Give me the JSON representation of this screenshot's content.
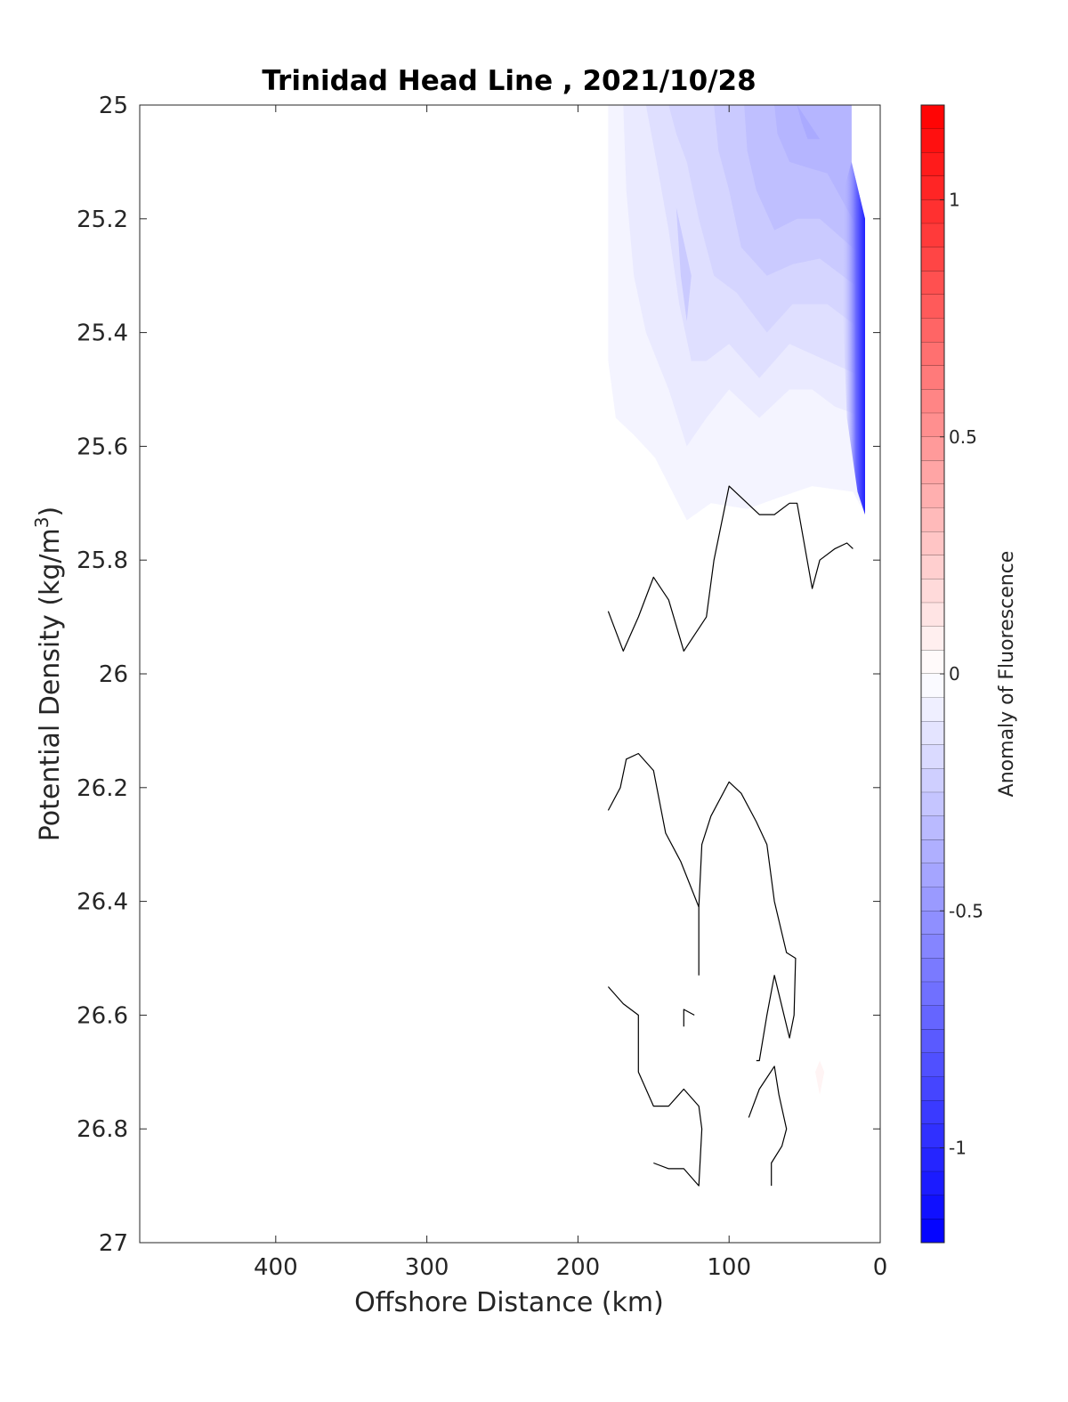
{
  "chart_data": {
    "type": "contour",
    "title": "Trinidad Head Line , 2021/10/28",
    "xlabel": "Offshore Distance (km)",
    "ylabel_main": "Potential Density (kg/m",
    "ylabel_sup": "3",
    "ylabel_close": ")",
    "x_reversed": true,
    "y_reversed": true,
    "xlim": [
      0,
      490
    ],
    "ylim": [
      25,
      27
    ],
    "xticks": [
      400,
      300,
      200,
      100,
      0
    ],
    "yticks": [
      "25",
      "25.2",
      "25.4",
      "25.6",
      "25.8",
      "26",
      "26.2",
      "26.4",
      "26.6",
      "26.8",
      "27"
    ],
    "colorbar": {
      "label": "Anomaly of Fluorescence",
      "range": [
        -1.2,
        1.2
      ],
      "levels": 48,
      "ticks": [
        "-1",
        "-0.5",
        "0",
        "0.5",
        "1"
      ],
      "tick_values": [
        -1,
        -0.5,
        0,
        0.5,
        1
      ],
      "colors": {
        "low": "#0000ff",
        "mid": "#ffffff",
        "high": "#ff0000"
      }
    },
    "filled_regions": [
      {
        "level": -0.05,
        "points": [
          [
            180,
            25
          ],
          [
            19,
            25
          ],
          [
            19,
            25.1
          ],
          [
            10,
            25.2
          ],
          [
            10,
            25.72
          ],
          [
            18,
            25.68
          ],
          [
            45,
            25.67
          ],
          [
            67,
            25.69
          ],
          [
            88,
            25.71
          ],
          [
            112,
            25.7
          ],
          [
            128,
            25.73
          ],
          [
            149,
            25.62
          ],
          [
            163,
            25.58
          ],
          [
            175,
            25.55
          ],
          [
            180,
            25.45
          ]
        ]
      },
      {
        "level": -0.1,
        "points": [
          [
            170,
            25
          ],
          [
            19,
            25
          ],
          [
            19,
            25.1
          ],
          [
            10,
            25.2
          ],
          [
            10,
            25.55
          ],
          [
            30,
            25.53
          ],
          [
            45,
            25.5
          ],
          [
            60,
            25.5
          ],
          [
            80,
            25.55
          ],
          [
            100,
            25.5
          ],
          [
            115,
            25.55
          ],
          [
            128,
            25.6
          ],
          [
            140,
            25.5
          ],
          [
            155,
            25.4
          ],
          [
            163,
            25.3
          ],
          [
            168,
            25.15
          ]
        ]
      },
      {
        "level": -0.15,
        "points": [
          [
            155,
            25
          ],
          [
            19,
            25
          ],
          [
            19,
            25.1
          ],
          [
            10,
            25.2
          ],
          [
            10,
            25.48
          ],
          [
            35,
            25.45
          ],
          [
            60,
            25.42
          ],
          [
            80,
            25.48
          ],
          [
            100,
            25.42
          ],
          [
            115,
            25.45
          ],
          [
            125,
            25.45
          ],
          [
            133,
            25.35
          ],
          [
            140,
            25.22
          ],
          [
            148,
            25.1
          ]
        ]
      },
      {
        "level": -0.2,
        "points": [
          [
            140,
            25
          ],
          [
            19,
            25
          ],
          [
            19,
            25.1
          ],
          [
            10,
            25.2
          ],
          [
            10,
            25.4
          ],
          [
            35,
            25.35
          ],
          [
            58,
            25.35
          ],
          [
            75,
            25.4
          ],
          [
            95,
            25.33
          ],
          [
            110,
            25.3
          ],
          [
            120,
            25.2
          ],
          [
            128,
            25.1
          ],
          [
            135,
            25.05
          ]
        ]
      },
      {
        "level": -0.25,
        "points": [
          [
            135,
            25.18
          ],
          [
            125,
            25.3
          ],
          [
            128,
            25.38
          ],
          [
            132,
            25.3
          ]
        ]
      },
      {
        "level": -0.25,
        "points": [
          [
            110,
            25
          ],
          [
            19,
            25
          ],
          [
            19,
            25.1
          ],
          [
            10,
            25.2
          ],
          [
            10,
            25.33
          ],
          [
            40,
            25.27
          ],
          [
            58,
            25.28
          ],
          [
            75,
            25.3
          ],
          [
            92,
            25.25
          ],
          [
            100,
            25.15
          ],
          [
            107,
            25.08
          ]
        ]
      },
      {
        "level": -0.3,
        "points": [
          [
            90,
            25
          ],
          [
            19,
            25
          ],
          [
            19,
            25.1
          ],
          [
            10,
            25.2
          ],
          [
            10,
            25.27
          ],
          [
            40,
            25.2
          ],
          [
            55,
            25.2
          ],
          [
            70,
            25.22
          ],
          [
            82,
            25.15
          ],
          [
            88,
            25.08
          ]
        ]
      },
      {
        "level": -0.35,
        "points": [
          [
            70,
            25
          ],
          [
            19,
            25
          ],
          [
            19,
            25.1
          ],
          [
            10,
            25.2
          ],
          [
            10,
            25.24
          ],
          [
            35,
            25.12
          ],
          [
            48,
            25.11
          ],
          [
            60,
            25.1
          ],
          [
            68,
            25.05
          ]
        ]
      },
      {
        "level": -0.4,
        "points": [
          [
            55,
            25
          ],
          [
            40,
            25.06
          ],
          [
            48,
            25.06
          ],
          [
            52,
            25.03
          ]
        ]
      }
    ],
    "gradient_region": {
      "points": [
        [
          19,
          25.1
        ],
        [
          10,
          25.2
        ],
        [
          10,
          25.72
        ],
        [
          15,
          25.68
        ],
        [
          22,
          25.55
        ],
        [
          25,
          25.35
        ],
        [
          24,
          25.15
        ]
      ]
    },
    "positive_blob": {
      "level": 0.05,
      "points": [
        [
          40,
          26.68
        ],
        [
          37,
          26.7
        ],
        [
          40,
          26.74
        ],
        [
          43,
          26.7
        ]
      ]
    },
    "zero_contours": [
      [
        [
          180,
          25.89
        ],
        [
          170,
          25.96
        ],
        [
          160,
          25.9
        ],
        [
          150,
          25.83
        ],
        [
          140,
          25.87
        ],
        [
          130,
          25.96
        ],
        [
          120,
          25.92
        ],
        [
          115,
          25.9
        ],
        [
          110,
          25.8
        ],
        [
          100,
          25.67
        ],
        [
          80,
          25.72
        ],
        [
          70,
          25.72
        ],
        [
          60,
          25.7
        ],
        [
          55,
          25.7
        ],
        [
          45,
          25.85
        ],
        [
          40,
          25.8
        ],
        [
          30,
          25.78
        ],
        [
          22,
          25.77
        ],
        [
          18,
          25.78
        ]
      ],
      [
        [
          180,
          26.24
        ],
        [
          172,
          26.2
        ],
        [
          168,
          26.15
        ],
        [
          160,
          26.14
        ],
        [
          150,
          26.17
        ],
        [
          142,
          26.28
        ],
        [
          132,
          26.33
        ],
        [
          120,
          26.41
        ],
        [
          120,
          26.53
        ]
      ],
      [
        [
          120,
          26.41
        ],
        [
          118,
          26.3
        ],
        [
          112,
          26.25
        ],
        [
          100,
          26.19
        ],
        [
          92,
          26.21
        ],
        [
          82,
          26.26
        ],
        [
          75,
          26.3
        ],
        [
          70,
          26.4
        ],
        [
          62,
          26.49
        ],
        [
          56,
          26.5
        ],
        [
          57,
          26.6
        ],
        [
          60,
          26.64
        ],
        [
          70,
          26.53
        ],
        [
          75,
          26.6
        ],
        [
          80,
          26.68
        ],
        [
          82,
          26.68
        ]
      ],
      [
        [
          180,
          26.55
        ],
        [
          170,
          26.58
        ],
        [
          160,
          26.6
        ],
        [
          160,
          26.7
        ],
        [
          150,
          26.76
        ],
        [
          140,
          26.76
        ],
        [
          130,
          26.73
        ],
        [
          120,
          26.76
        ],
        [
          118,
          26.8
        ],
        [
          120,
          26.9
        ],
        [
          130,
          26.87
        ],
        [
          140,
          26.87
        ],
        [
          150,
          26.86
        ]
      ],
      [
        [
          130,
          26.62
        ],
        [
          130,
          26.59
        ],
        [
          123,
          26.6
        ]
      ],
      [
        [
          87,
          26.78
        ],
        [
          80,
          26.73
        ],
        [
          70,
          26.69
        ],
        [
          67,
          26.74
        ],
        [
          62,
          26.8
        ],
        [
          65,
          26.83
        ],
        [
          72,
          26.86
        ],
        [
          72,
          26.9
        ]
      ]
    ]
  }
}
